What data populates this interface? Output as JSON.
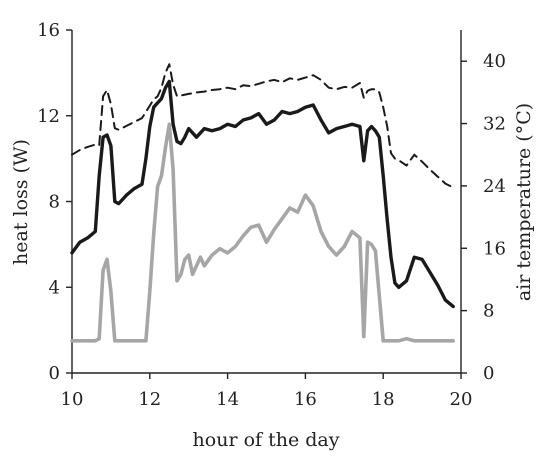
{
  "chart_data": {
    "type": "line",
    "title": "",
    "xlabel": "hour of the day",
    "ylabel": "heat loss (W)",
    "y2label": "air temperature (°C)",
    "xlim": [
      10,
      20
    ],
    "ylim": [
      0,
      16
    ],
    "y2lim": [
      0,
      44
    ],
    "x_ticks": [
      "10",
      "12",
      "14",
      "16",
      "18",
      "20"
    ],
    "y_ticks": [
      "0",
      "4",
      "8",
      "12",
      "16"
    ],
    "y2_ticks": [
      "0",
      "8",
      "16",
      "24",
      "32",
      "40"
    ],
    "grid": false,
    "colors": {
      "black_line": "#1a1a1a",
      "gray_line": "#a6a6a6",
      "dashed_line": "#1a1a1a"
    },
    "series": [
      {
        "axis": "left",
        "style": "solid-black",
        "x": [
          10.0,
          10.2,
          10.4,
          10.6,
          10.7,
          10.8,
          10.9,
          11.0,
          11.1,
          11.2,
          11.4,
          11.6,
          11.8,
          11.9,
          12.0,
          12.1,
          12.2,
          12.3,
          12.4,
          12.5,
          12.6,
          12.7,
          12.8,
          12.9,
          13.0,
          13.2,
          13.4,
          13.6,
          13.8,
          14.0,
          14.2,
          14.4,
          14.6,
          14.8,
          15.0,
          15.2,
          15.4,
          15.6,
          15.8,
          16.0,
          16.2,
          16.4,
          16.6,
          16.8,
          17.0,
          17.2,
          17.4,
          17.5,
          17.6,
          17.7,
          17.8,
          17.9,
          18.0,
          18.1,
          18.2,
          18.3,
          18.4,
          18.6,
          18.8,
          19.0,
          19.2,
          19.4,
          19.6,
          19.8
        ],
        "values": [
          5.6,
          6.1,
          6.3,
          6.6,
          9.2,
          11.0,
          11.1,
          10.6,
          8.0,
          7.9,
          8.3,
          8.6,
          8.8,
          10.0,
          11.5,
          12.4,
          12.6,
          12.8,
          13.3,
          13.6,
          11.6,
          10.8,
          10.7,
          11.0,
          11.4,
          11.0,
          11.4,
          11.3,
          11.4,
          11.6,
          11.5,
          11.8,
          11.9,
          12.1,
          11.6,
          11.8,
          12.2,
          12.1,
          12.2,
          12.4,
          12.5,
          11.8,
          11.2,
          11.4,
          11.5,
          11.6,
          11.5,
          9.9,
          11.3,
          11.5,
          11.3,
          11.0,
          9.2,
          7.2,
          5.4,
          4.2,
          4.0,
          4.3,
          5.4,
          5.3,
          4.7,
          4.1,
          3.4,
          3.1
        ]
      },
      {
        "axis": "left",
        "style": "solid-gray",
        "x": [
          10.0,
          10.2,
          10.4,
          10.6,
          10.7,
          10.8,
          10.9,
          11.0,
          11.1,
          11.2,
          11.4,
          11.6,
          11.8,
          11.9,
          12.0,
          12.1,
          12.2,
          12.3,
          12.4,
          12.5,
          12.6,
          12.7,
          12.8,
          12.9,
          13.0,
          13.1,
          13.2,
          13.3,
          13.4,
          13.6,
          13.8,
          14.0,
          14.2,
          14.4,
          14.6,
          14.8,
          15.0,
          15.2,
          15.4,
          15.6,
          15.8,
          16.0,
          16.2,
          16.4,
          16.6,
          16.8,
          17.0,
          17.2,
          17.4,
          17.5,
          17.6,
          17.7,
          17.8,
          17.9,
          18.0,
          18.1,
          18.2,
          18.4,
          18.6,
          18.8,
          19.0,
          19.2,
          19.4,
          19.6,
          19.8
        ],
        "values": [
          1.5,
          1.5,
          1.5,
          1.5,
          1.6,
          4.8,
          5.3,
          3.8,
          1.5,
          1.5,
          1.5,
          1.5,
          1.5,
          1.5,
          3.8,
          6.5,
          8.7,
          9.2,
          10.5,
          11.6,
          9.5,
          4.3,
          4.6,
          5.3,
          5.5,
          4.6,
          5.0,
          5.4,
          5.0,
          5.5,
          5.8,
          5.6,
          5.9,
          6.4,
          6.8,
          6.9,
          6.1,
          6.7,
          7.2,
          7.7,
          7.5,
          8.3,
          7.8,
          6.6,
          5.9,
          5.5,
          5.9,
          6.6,
          6.3,
          1.7,
          6.1,
          6.0,
          5.7,
          3.6,
          1.5,
          1.5,
          1.5,
          1.5,
          1.6,
          1.5,
          1.5,
          1.5,
          1.5,
          1.5,
          1.5
        ]
      },
      {
        "axis": "right",
        "style": "dashed-black",
        "x": [
          10.0,
          10.2,
          10.4,
          10.6,
          10.7,
          10.8,
          10.9,
          11.0,
          11.1,
          11.2,
          11.4,
          11.6,
          11.8,
          11.9,
          12.0,
          12.1,
          12.2,
          12.3,
          12.4,
          12.5,
          12.6,
          12.7,
          12.8,
          13.0,
          13.2,
          13.4,
          13.6,
          13.8,
          14.0,
          14.2,
          14.4,
          14.6,
          14.8,
          15.0,
          15.2,
          15.4,
          15.6,
          15.8,
          16.0,
          16.2,
          16.4,
          16.6,
          16.8,
          17.0,
          17.2,
          17.4,
          17.5,
          17.6,
          17.7,
          17.8,
          17.9,
          18.0,
          18.1,
          18.2,
          18.3,
          18.4,
          18.6,
          18.8,
          19.0,
          19.2,
          19.4,
          19.6,
          19.8
        ],
        "values": [
          28.0,
          28.6,
          29.0,
          29.3,
          29.2,
          35.5,
          36.3,
          34.5,
          31.4,
          31.2,
          31.7,
          32.2,
          32.7,
          33.5,
          34.3,
          35.1,
          35.5,
          36.6,
          38.5,
          39.6,
          37.0,
          35.5,
          35.6,
          35.8,
          36.0,
          36.1,
          36.3,
          36.4,
          36.6,
          36.4,
          36.9,
          36.8,
          37.1,
          37.4,
          37.6,
          37.3,
          37.8,
          37.6,
          37.9,
          38.2,
          37.6,
          36.6,
          36.4,
          36.7,
          36.6,
          37.2,
          35.3,
          36.2,
          36.4,
          36.4,
          36.0,
          34.1,
          31.7,
          28.2,
          27.5,
          27.3,
          26.6,
          28.0,
          27.1,
          26.1,
          25.2,
          24.3,
          23.8
        ]
      }
    ]
  }
}
